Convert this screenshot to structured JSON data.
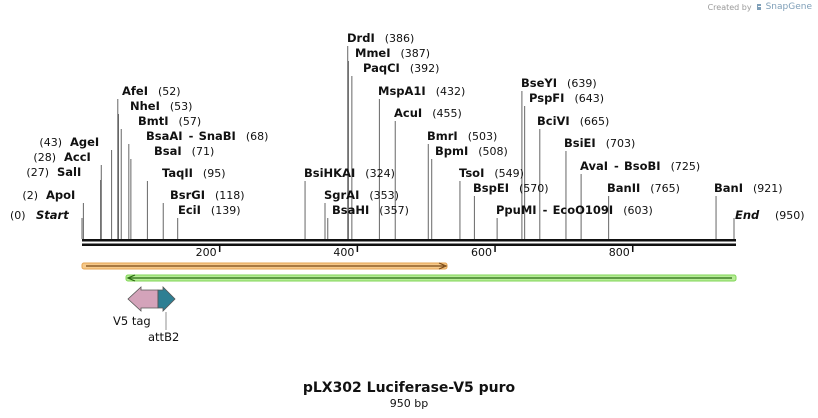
{
  "credit": {
    "prefix": "Created by",
    "brand": "SnapGene",
    "logo_icon": "snapgene-logo-icon"
  },
  "map": {
    "title": "pLX302 Luciferase-V5 puro",
    "length_label": "950 bp",
    "ticks": [
      "200",
      "400",
      "600",
      "800"
    ],
    "ends": {
      "start": {
        "name": "Start",
        "pos": "(0)"
      },
      "end": {
        "name": "End",
        "pos": "(950)"
      }
    },
    "enzymes": [
      {
        "name": "ApoI",
        "pos": "(2)",
        "side": "left"
      },
      {
        "name": "SalI",
        "pos": "(27)",
        "side": "left"
      },
      {
        "name": "AccI",
        "pos": "(28)",
        "side": "left"
      },
      {
        "name": "AgeI",
        "pos": "(43)",
        "side": "left"
      },
      {
        "name": "AfeI",
        "pos": "(52)",
        "side": "right"
      },
      {
        "name": "NheI",
        "pos": "(53)",
        "side": "right"
      },
      {
        "name": "BmtI",
        "pos": "(57)",
        "side": "right"
      },
      {
        "name": "BsaAI",
        "name2": "SnaBI",
        "pos": "(68)",
        "side": "right"
      },
      {
        "name": "BsaI",
        "pos": "(71)",
        "side": "right"
      },
      {
        "name": "TaqII",
        "pos": "(95)",
        "side": "right"
      },
      {
        "name": "BsrGI",
        "pos": "(118)",
        "side": "right"
      },
      {
        "name": "EciI",
        "pos": "(139)",
        "side": "right"
      },
      {
        "name": "BsiHKAI",
        "pos": "(324)",
        "side": "right"
      },
      {
        "name": "SgrAI",
        "pos": "(353)",
        "side": "right"
      },
      {
        "name": "BsaHI",
        "pos": "(357)",
        "side": "right"
      },
      {
        "name": "DrdI",
        "pos": "(386)",
        "side": "right"
      },
      {
        "name": "MmeI",
        "pos": "(387)",
        "side": "right"
      },
      {
        "name": "PaqCI",
        "pos": "(392)",
        "side": "right"
      },
      {
        "name": "MspA1I",
        "pos": "(432)",
        "side": "right"
      },
      {
        "name": "AcuI",
        "pos": "(455)",
        "side": "right"
      },
      {
        "name": "BmrI",
        "pos": "(503)",
        "side": "right"
      },
      {
        "name": "BpmI",
        "pos": "(508)",
        "side": "right"
      },
      {
        "name": "TsoI",
        "pos": "(549)",
        "side": "right"
      },
      {
        "name": "BspEI",
        "pos": "(570)",
        "side": "right"
      },
      {
        "name": "PpuMI",
        "name2": "EcoO109I",
        "pos": "(603)",
        "side": "right"
      },
      {
        "name": "BseYI",
        "pos": "(639)",
        "side": "right"
      },
      {
        "name": "PspFI",
        "pos": "(643)",
        "side": "right"
      },
      {
        "name": "BciVI",
        "pos": "(665)",
        "side": "right"
      },
      {
        "name": "BsiEI",
        "pos": "(703)",
        "side": "right"
      },
      {
        "name": "AvaI",
        "name2": "BsoBI",
        "pos": "(725)",
        "side": "right"
      },
      {
        "name": "BanII",
        "pos": "(765)",
        "side": "right"
      },
      {
        "name": "BanI",
        "pos": "(921)",
        "side": "right"
      }
    ],
    "features": [
      {
        "name": "V5 tag",
        "color": "#d4a3ba",
        "direction": "left"
      },
      {
        "name": "attB2",
        "color": "#2e7f93",
        "direction": "right"
      }
    ],
    "orf_bars": [
      {
        "color": "#f0a93a",
        "direction": "right"
      },
      {
        "color": "#7fd654",
        "direction": "left"
      }
    ]
  }
}
